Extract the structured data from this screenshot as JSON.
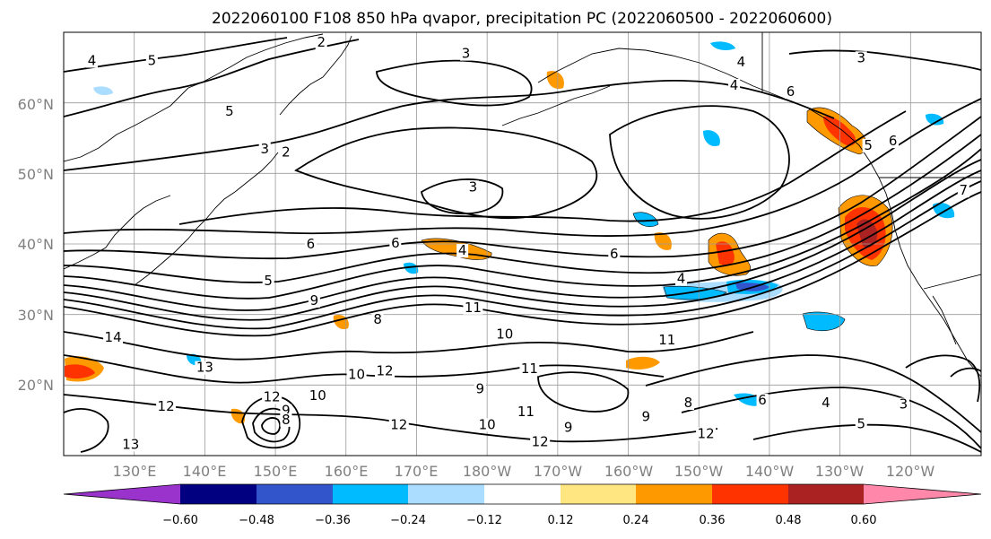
{
  "title": "2022060100 F108 850 hPa qvapor, precipitation PC (2022060500 - 2022060600)",
  "lat_labels": [
    "60°N",
    "50°N",
    "40°N",
    "30°N",
    "20°N"
  ],
  "lon_labels": [
    "130°E",
    "140°E",
    "150°E",
    "160°E",
    "170°E",
    "180°W",
    "170°W",
    "160°W",
    "150°W",
    "140°W",
    "130°W",
    "120°W"
  ],
  "colorbar": {
    "colors": [
      "#9933cc",
      "#000080",
      "#3355cc",
      "#00bbff",
      "#aaddff",
      "#ffffff",
      "#ffe680",
      "#ff9900",
      "#ff3300",
      "#aa2222",
      "#ff88aa"
    ],
    "ticks": [
      "−0.60",
      "−0.48",
      "−0.36",
      "−0.24",
      "−0.12",
      "0.12",
      "0.24",
      "0.36",
      "0.48",
      "0.60"
    ]
  },
  "map": {
    "lon_range": [
      120,
      250
    ],
    "lat_range": [
      10,
      70
    ],
    "contour_labels": [
      {
        "t": "2",
        "lon": 156.5,
        "lat": 68.6
      },
      {
        "t": "3",
        "lon": 177.0,
        "lat": 67.0
      },
      {
        "t": "3",
        "lon": 233.0,
        "lat": 66.4
      },
      {
        "t": "4",
        "lon": 124.0,
        "lat": 66.0
      },
      {
        "t": "5",
        "lon": 132.5,
        "lat": 66.0
      },
      {
        "t": "4",
        "lon": 216.0,
        "lat": 65.8
      },
      {
        "t": "4",
        "lon": 215.0,
        "lat": 62.5
      },
      {
        "t": "6",
        "lon": 223.0,
        "lat": 61.6
      },
      {
        "t": "5",
        "lon": 143.5,
        "lat": 58.8
      },
      {
        "t": "3",
        "lon": 148.5,
        "lat": 53.5
      },
      {
        "t": "2",
        "lon": 151.5,
        "lat": 53.0
      },
      {
        "t": "5",
        "lon": 234.0,
        "lat": 54.0
      },
      {
        "t": "6",
        "lon": 237.5,
        "lat": 54.6
      },
      {
        "t": "3",
        "lon": 178.0,
        "lat": 48.1
      },
      {
        "t": "7",
        "lon": 247.5,
        "lat": 47.6
      },
      {
        "t": "6",
        "lon": 155.0,
        "lat": 40.0
      },
      {
        "t": "6",
        "lon": 167.0,
        "lat": 40.1
      },
      {
        "t": "4",
        "lon": 176.5,
        "lat": 39.1
      },
      {
        "t": "6",
        "lon": 198.0,
        "lat": 38.6
      },
      {
        "t": "5",
        "lon": 149.0,
        "lat": 34.8
      },
      {
        "t": "4",
        "lon": 207.5,
        "lat": 35.1
      },
      {
        "t": "9",
        "lon": 155.5,
        "lat": 32.0
      },
      {
        "t": "8",
        "lon": 164.5,
        "lat": 29.3
      },
      {
        "t": "11",
        "lon": 178.0,
        "lat": 31.0
      },
      {
        "t": "10",
        "lon": 182.5,
        "lat": 27.2
      },
      {
        "t": "14",
        "lon": 127.0,
        "lat": 26.8
      },
      {
        "t": "11",
        "lon": 205.5,
        "lat": 26.4
      },
      {
        "t": "13",
        "lon": 140.0,
        "lat": 22.5
      },
      {
        "t": "10",
        "lon": 161.5,
        "lat": 21.5
      },
      {
        "t": "12",
        "lon": 165.5,
        "lat": 22.0
      },
      {
        "t": "11",
        "lon": 186.0,
        "lat": 22.3
      },
      {
        "t": "12",
        "lon": 149.5,
        "lat": 18.3
      },
      {
        "t": "10",
        "lon": 156.0,
        "lat": 18.5
      },
      {
        "t": "9",
        "lon": 179.0,
        "lat": 19.5
      },
      {
        "t": "8",
        "lon": 208.5,
        "lat": 17.5
      },
      {
        "t": "6",
        "lon": 219.0,
        "lat": 17.9
      },
      {
        "t": "12",
        "lon": 134.5,
        "lat": 17.0
      },
      {
        "t": "9",
        "lon": 151.5,
        "lat": 16.4
      },
      {
        "t": "8",
        "lon": 151.5,
        "lat": 15.1
      },
      {
        "t": "4",
        "lon": 228.0,
        "lat": 17.5
      },
      {
        "t": "3",
        "lon": 239.0,
        "lat": 17.3
      },
      {
        "t": "11",
        "lon": 185.5,
        "lat": 16.2
      },
      {
        "t": "9",
        "lon": 202.5,
        "lat": 15.5
      },
      {
        "t": "10",
        "lon": 180.0,
        "lat": 14.4
      },
      {
        "t": "12",
        "lon": 167.5,
        "lat": 14.4
      },
      {
        "t": "9",
        "lon": 191.5,
        "lat": 14.0
      },
      {
        "t": "5",
        "lon": 233.0,
        "lat": 14.5
      },
      {
        "t": "12",
        "lon": 211.0,
        "lat": 13.1
      },
      {
        "t": "12",
        "lon": 187.5,
        "lat": 12.0
      },
      {
        "t": "13",
        "lon": 129.5,
        "lat": 11.6
      }
    ]
  }
}
